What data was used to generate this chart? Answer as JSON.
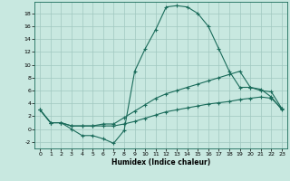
{
  "title": "",
  "xlabel": "Humidex (Indice chaleur)",
  "bg_color": "#c8e8e0",
  "line_color": "#1a6b5a",
  "grid_color": "#a0c8c0",
  "xlim": [
    -0.5,
    23.5
  ],
  "ylim": [
    -3.0,
    19.8
  ],
  "yticks": [
    -2,
    0,
    2,
    4,
    6,
    8,
    10,
    12,
    14,
    16,
    18
  ],
  "xticks": [
    0,
    1,
    2,
    3,
    4,
    5,
    6,
    7,
    8,
    9,
    10,
    11,
    12,
    13,
    14,
    15,
    16,
    17,
    18,
    19,
    20,
    21,
    22,
    23
  ],
  "line1_x": [
    0,
    1,
    2,
    3,
    4,
    5,
    6,
    7,
    8,
    9,
    10,
    11,
    12,
    13,
    14,
    15,
    16,
    17,
    18,
    19,
    20,
    21,
    22,
    23
  ],
  "line1_y": [
    3.0,
    1.0,
    1.0,
    0.0,
    -1.0,
    -1.0,
    -1.5,
    -2.2,
    -0.2,
    9.0,
    12.5,
    15.5,
    19.0,
    19.2,
    19.0,
    18.0,
    16.0,
    12.5,
    9.0,
    6.5,
    6.5,
    6.2,
    5.0,
    3.0
  ],
  "line2_x": [
    0,
    1,
    2,
    3,
    4,
    5,
    6,
    7,
    8,
    9,
    10,
    11,
    12,
    13,
    14,
    15,
    16,
    17,
    18,
    19,
    20,
    21,
    22,
    23
  ],
  "line2_y": [
    3.0,
    1.0,
    1.0,
    0.5,
    0.5,
    0.5,
    0.8,
    0.8,
    1.8,
    2.8,
    3.8,
    4.8,
    5.5,
    6.0,
    6.5,
    7.0,
    7.5,
    8.0,
    8.5,
    9.0,
    6.5,
    6.0,
    5.8,
    3.2
  ],
  "line3_x": [
    0,
    1,
    2,
    3,
    4,
    5,
    6,
    7,
    8,
    9,
    10,
    11,
    12,
    13,
    14,
    15,
    16,
    17,
    18,
    19,
    20,
    21,
    22,
    23
  ],
  "line3_y": [
    3.0,
    1.0,
    1.0,
    0.5,
    0.5,
    0.5,
    0.5,
    0.5,
    0.8,
    1.2,
    1.7,
    2.2,
    2.7,
    3.0,
    3.3,
    3.6,
    3.9,
    4.1,
    4.3,
    4.6,
    4.8,
    5.0,
    4.8,
    3.2
  ]
}
